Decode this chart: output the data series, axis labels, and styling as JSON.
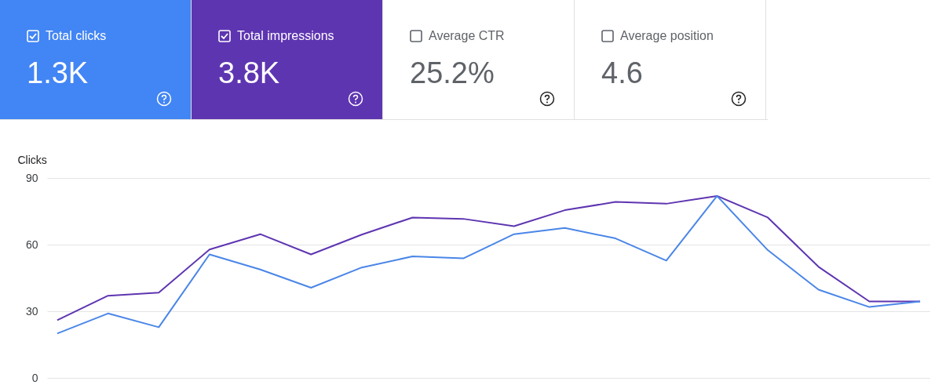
{
  "chart_data": [
    {
      "type": "other",
      "annotations": [
        "Total clicks",
        "1.3K",
        "Total impressions",
        "3.8K",
        "Average CTR",
        "25.2%",
        "Average position",
        "4.6"
      ]
    },
    {
      "type": "line",
      "ylabel": "Clicks",
      "categories": [
        null,
        null,
        null,
        null,
        null,
        null,
        null,
        null,
        null,
        null,
        null,
        null,
        null,
        null,
        null,
        null,
        null,
        null
      ],
      "series": [
        {
          "color": "#5e35b1",
          "values": [
            26,
            37,
            38.4,
            57.8,
            64.7,
            55.6,
            64.5,
            72.2,
            71.6,
            68.3,
            75.5,
            79.2,
            78.4,
            81.9,
            72.2,
            50,
            34.4,
            34.4
          ]
        },
        {
          "color": "#4a86e8",
          "values": [
            20,
            29,
            22.8,
            55.6,
            48.8,
            40.6,
            49.7,
            54.7,
            53.8,
            64.7,
            67.5,
            62.8,
            52.8,
            81.9,
            57.5,
            39.7,
            31.9,
            34.4
          ]
        }
      ],
      "ylim": [
        0,
        90
      ],
      "yticks": [
        0,
        30,
        60,
        90
      ],
      "grid": "y",
      "tick_labels": "y",
      "marker": "none",
      "line_style": "solid"
    }
  ]
}
